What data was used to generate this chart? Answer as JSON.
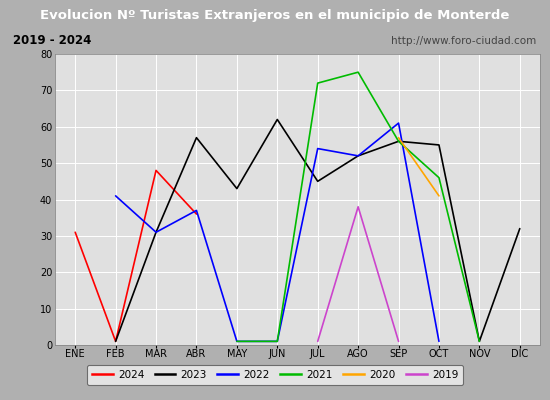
{
  "title": "Evolucion Nº Turistas Extranjeros en el municipio de Monterde",
  "subtitle_left": "2019 - 2024",
  "subtitle_right": "http://www.foro-ciudad.com",
  "months": [
    "ENE",
    "FEB",
    "MAR",
    "ABR",
    "MAY",
    "JUN",
    "JUL",
    "AGO",
    "SEP",
    "OCT",
    "NOV",
    "DIC"
  ],
  "ylim": [
    0,
    80
  ],
  "yticks": [
    0,
    10,
    20,
    30,
    40,
    50,
    60,
    70,
    80
  ],
  "series": {
    "2024": {
      "color": "#ff0000",
      "data": [
        31,
        1,
        48,
        36,
        null,
        null,
        null,
        null,
        null,
        null,
        null,
        null
      ]
    },
    "2023": {
      "color": "#000000",
      "data": [
        null,
        1,
        31,
        57,
        43,
        62,
        45,
        52,
        56,
        55,
        1,
        32
      ]
    },
    "2022": {
      "color": "#0000ff",
      "data": [
        null,
        41,
        31,
        37,
        1,
        1,
        54,
        52,
        61,
        1,
        null,
        null
      ]
    },
    "2021": {
      "color": "#00bb00",
      "data": [
        null,
        null,
        null,
        null,
        1,
        1,
        72,
        75,
        56,
        46,
        1,
        null
      ]
    },
    "2020": {
      "color": "#ffa500",
      "data": [
        null,
        null,
        null,
        null,
        null,
        null,
        null,
        null,
        57,
        41,
        null,
        null
      ]
    },
    "2019": {
      "color": "#cc44cc",
      "data": [
        null,
        null,
        null,
        null,
        null,
        null,
        1,
        38,
        1,
        null,
        null,
        null
      ]
    }
  },
  "legend_order": [
    "2024",
    "2023",
    "2022",
    "2021",
    "2020",
    "2019"
  ],
  "title_bg": "#4169b8",
  "title_color": "#ffffff",
  "subtitle_bg": "#d8d8d8",
  "plot_bg": "#e0e0e0",
  "outer_bg": "#b0b0b0",
  "grid_color": "#ffffff"
}
